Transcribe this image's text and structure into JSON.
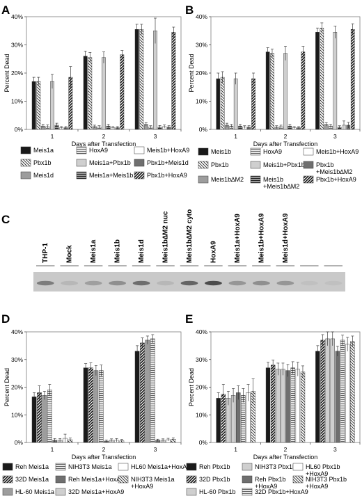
{
  "panel_labels": [
    "A",
    "B",
    "C",
    "D",
    "E"
  ],
  "colors": {
    "black": "#1a1a1a",
    "dark_gray": "#6f6f6f",
    "medium_gray": "#9d9d9d",
    "light_gray": "#cfcfcf",
    "white": "#ffffff",
    "frame": "#7a7a7a"
  },
  "blot": {
    "lanes": [
      "THP-1",
      "Mock",
      "Meis1a",
      "Meis1b",
      "Meis1d",
      "Meis1b∆M2 nuc",
      "Meis1b∆M2 cyto",
      "HoxA9",
      "Meis1a+HoxA9",
      "Meis1b+HoxA9",
      "Meis1d+HoxA9",
      "",
      ""
    ],
    "band_intensity": [
      0.45,
      0.1,
      0.25,
      0.35,
      0.55,
      0.1,
      0.6,
      0.75,
      0.3,
      0.35,
      0.3,
      0.05,
      0.05
    ]
  },
  "chart_data": [
    {
      "panel": "A",
      "type": "bar",
      "title": "",
      "xlabel": "Days after Transfection",
      "ylabel": "Percent Dead",
      "categories": [
        "1",
        "2",
        "3"
      ],
      "ylim": [
        0,
        40
      ],
      "yticks": [
        "0%",
        "10%",
        "20%",
        "30%",
        "40%"
      ],
      "grid": false,
      "legend_position": "bottom",
      "series": [
        {
          "name": "Meis1a",
          "fill": "black",
          "values": [
            17,
            26,
            35.5
          ],
          "errors": [
            1.5,
            1.8,
            1.8
          ]
        },
        {
          "name": "Pbx1b",
          "fill": "diag-bwd",
          "values": [
            17,
            25.5,
            35.5
          ],
          "errors": [
            1.5,
            1.8,
            1.8
          ]
        },
        {
          "name": "Meis1d",
          "fill": "medium_gray",
          "values": [
            1.2,
            1,
            1.8
          ],
          "errors": [
            0.6,
            0.5,
            0.6
          ]
        },
        {
          "name": "HoxA9",
          "fill": "hlines",
          "values": [
            1,
            0.8,
            0.8
          ],
          "errors": [
            0.6,
            0.5,
            0.5
          ]
        },
        {
          "name": "Meis1a+Pbx1b",
          "fill": "light_gray",
          "values": [
            17,
            25.5,
            35
          ],
          "errors": [
            2.5,
            2,
            4.5
          ]
        },
        {
          "name": "Meis1a+Meis1b",
          "fill": "hlines-dark",
          "values": [
            1.5,
            1.2,
            0.8
          ],
          "errors": [
            0.7,
            0.6,
            0.6
          ]
        },
        {
          "name": "Meis1b+HoxA9",
          "fill": "white",
          "values": [
            0.6,
            0.6,
            1
          ],
          "errors": [
            0.4,
            0.4,
            0.6
          ]
        },
        {
          "name": "Pbx1b+Meis1d",
          "fill": "dark_gray",
          "values": [
            0.6,
            0.6,
            0.8
          ],
          "errors": [
            0.4,
            0.4,
            0.5
          ]
        },
        {
          "name": "Pbx1b+HoxA9",
          "fill": "diag-fwd-bold",
          "values": [
            18.5,
            26.5,
            34.5
          ],
          "errors": [
            3.8,
            1.5,
            1.8
          ]
        }
      ],
      "legend_order": [
        0,
        3,
        6,
        1,
        4,
        7,
        2,
        5,
        8
      ]
    },
    {
      "panel": "B",
      "type": "bar",
      "title": "",
      "xlabel": "Days after Transfection",
      "ylabel": "Percent Dead",
      "categories": [
        "1",
        "2",
        "3"
      ],
      "ylim": [
        0,
        40
      ],
      "yticks": [
        "0%",
        "10%",
        "20%",
        "30%",
        "40%"
      ],
      "grid": false,
      "legend_position": "bottom",
      "series": [
        {
          "name": "Meis1b",
          "fill": "black",
          "values": [
            18,
            27.5,
            34.5
          ],
          "errors": [
            2,
            1.5,
            1.5
          ]
        },
        {
          "name": "Pbx1b",
          "fill": "diag-bwd",
          "values": [
            18.5,
            27,
            36
          ],
          "errors": [
            2,
            1.5,
            1.8
          ]
        },
        {
          "name": "Meis1b∆M2",
          "fill": "medium_gray",
          "values": [
            1.5,
            0.8,
            1.8
          ],
          "errors": [
            0.7,
            0.5,
            0.6
          ]
        },
        {
          "name": "HoxA9",
          "fill": "hlines",
          "values": [
            1.2,
            1,
            1.2
          ],
          "errors": [
            0.6,
            0.5,
            0.6
          ]
        },
        {
          "name": "Meis1b+Pbx1b",
          "fill": "light_gray",
          "values": [
            18,
            27,
            34.5
          ],
          "errors": [
            2,
            2.5,
            2.2
          ]
        },
        {
          "name": "Meis1b\n+Meis1b∆M2",
          "fill": "hlines-dark",
          "values": [
            1.2,
            1.2,
            0.8
          ],
          "errors": [
            0.6,
            0.6,
            0.5
          ]
        },
        {
          "name": "Meis1b+HoxA9",
          "fill": "white",
          "values": [
            0.8,
            0.6,
            1.5
          ],
          "errors": [
            0.5,
            0.4,
            1.5
          ]
        },
        {
          "name": "Pbx1b\n+Meis1b∆M2",
          "fill": "dark_gray",
          "values": [
            0.8,
            0.6,
            1.5
          ],
          "errors": [
            0.5,
            0.4,
            1
          ]
        },
        {
          "name": "Pbx1b+HoxA9",
          "fill": "diag-fwd-bold",
          "values": [
            18,
            27.5,
            35.5
          ],
          "errors": [
            2,
            2,
            2
          ]
        }
      ],
      "legend_order": [
        0,
        3,
        6,
        1,
        4,
        7,
        2,
        5,
        8
      ]
    },
    {
      "panel": "D",
      "type": "bar",
      "title": "",
      "xlabel": "Days after Transfection",
      "ylabel": "Percent Dead",
      "categories": [
        "1",
        "2",
        "3"
      ],
      "ylim": [
        0,
        40
      ],
      "yticks": [
        "0%",
        "10%",
        "20%",
        "30%",
        "40%"
      ],
      "grid": false,
      "legend_position": "bottom",
      "series": [
        {
          "name": "Reh Meis1a",
          "fill": "black",
          "values": [
            16.5,
            27,
            33
          ],
          "errors": [
            1.5,
            1.5,
            2
          ]
        },
        {
          "name": "32D Meis1a",
          "fill": "diag-fwd-bold",
          "values": [
            18,
            27,
            36
          ],
          "errors": [
            2.5,
            1.8,
            1.8
          ]
        },
        {
          "name": "HL-60 Meis1a",
          "fill": "medium_gray",
          "values": [
            17,
            26,
            37
          ],
          "errors": [
            1.5,
            1.8,
            1.5
          ]
        },
        {
          "name": "NIH3T3 Meis1a",
          "fill": "hlines",
          "values": [
            19,
            26,
            37.5
          ],
          "errors": [
            2,
            2,
            1.5
          ]
        },
        {
          "name": "Reh Meis1a+HoxA9",
          "fill": "dark_gray",
          "values": [
            0.8,
            0.5,
            0.8
          ],
          "errors": [
            0.6,
            0.4,
            0.4
          ]
        },
        {
          "name": "32D Meis1a+HoxA9",
          "fill": "light_gray",
          "values": [
            0.8,
            0.8,
            0.8
          ],
          "errors": [
            0.6,
            0.5,
            0.5
          ]
        },
        {
          "name": "HL60 Meis1a+HoxA9",
          "fill": "white",
          "values": [
            1.5,
            0.8,
            1
          ],
          "errors": [
            1.5,
            0.6,
            0.5
          ]
        },
        {
          "name": "NIH3T3 Meis1a\n+HoxA9",
          "fill": "diag-bwd",
          "values": [
            1,
            0.6,
            1.2
          ],
          "errors": [
            0.6,
            0.5,
            0.5
          ]
        }
      ],
      "legend_order": [
        0,
        3,
        6,
        1,
        4,
        7,
        2,
        5
      ]
    },
    {
      "panel": "E",
      "type": "bar",
      "title": "",
      "xlabel": "Days after Transfection",
      "ylabel": "Percent Dead",
      "categories": [
        "1",
        "2",
        "3"
      ],
      "ylim": [
        0,
        40
      ],
      "yticks": [
        "0%",
        "10%",
        "20%",
        "30%",
        "40%"
      ],
      "grid": false,
      "legend_position": "bottom",
      "series": [
        {
          "name": "Reh Pbx1b",
          "fill": "black",
          "values": [
            16,
            27,
            33
          ],
          "errors": [
            2,
            2,
            2
          ]
        },
        {
          "name": "32D Pbx1b",
          "fill": "diag-fwd-bold",
          "values": [
            17.5,
            28,
            37
          ],
          "errors": [
            3.5,
            1.8,
            2
          ]
        },
        {
          "name": "HL-60 Pbx1b",
          "fill": "light_gray",
          "values": [
            16,
            26.5,
            37.5
          ],
          "errors": [
            2.5,
            2.2,
            2.5
          ]
        },
        {
          "name": "NIH3T3 Pbx1b",
          "fill": "light_gray",
          "values": [
            17,
            26.5,
            37.5
          ],
          "errors": [
            2.5,
            2.2,
            2.5
          ]
        },
        {
          "name": "Reh Pbx1b\n+HoxA9",
          "fill": "dark_gray",
          "values": [
            18,
            26,
            33
          ],
          "errors": [
            2.5,
            2.2,
            1.8
          ]
        },
        {
          "name": "32D Pbx1b+HoxA9",
          "fill": "hlines",
          "values": [
            17,
            27,
            37
          ],
          "errors": [
            2.5,
            2.2,
            1.8
          ]
        },
        {
          "name": "HL60 Pbx1b\n+HoxA9",
          "fill": "white",
          "values": [
            18,
            26.5,
            35.5
          ],
          "errors": [
            3,
            2.5,
            2.5
          ]
        },
        {
          "name": "NIH3T3 Pbx1b\n+HoxA9",
          "fill": "diag-bwd",
          "values": [
            18.5,
            25.5,
            36.5
          ],
          "errors": [
            4.5,
            2.2,
            2
          ]
        }
      ],
      "legend_order": [
        0,
        3,
        6,
        1,
        4,
        7,
        2,
        5
      ]
    }
  ]
}
